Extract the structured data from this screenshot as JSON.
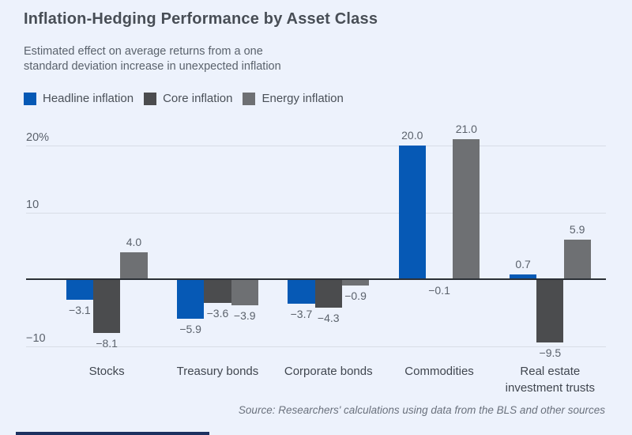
{
  "header": {
    "title": "Inflation-Hedging Performance by Asset Class",
    "subtitle_line1": "Estimated effect on average returns from a one",
    "subtitle_line2": "standard deviation increase in unexpected inflation"
  },
  "legend": {
    "items": [
      {
        "label": "Headline inflation",
        "color": "#0659b5"
      },
      {
        "label": "Core inflation",
        "color": "#4b4c4e"
      },
      {
        "label": "Energy inflation",
        "color": "#6e7073"
      }
    ]
  },
  "chart_data": {
    "type": "bar",
    "title": "Inflation-Hedging Performance by Asset Class",
    "categories": [
      "Stocks",
      "Treasury bonds",
      "Corporate bonds",
      "Commodities",
      "Real estate investment trusts"
    ],
    "series": [
      {
        "name": "Headline inflation",
        "color": "#0659b5",
        "values": [
          -3.1,
          -5.9,
          -3.7,
          20.0,
          0.7
        ]
      },
      {
        "name": "Core inflation",
        "color": "#4b4c4e",
        "values": [
          -8.1,
          -3.6,
          -4.3,
          -0.1,
          -9.5
        ]
      },
      {
        "name": "Energy inflation",
        "color": "#6e7073",
        "values": [
          4.0,
          -3.9,
          -0.9,
          21.0,
          5.9
        ]
      }
    ],
    "yticks": [
      {
        "value": 20,
        "label": "20%"
      },
      {
        "value": 10,
        "label": "10"
      },
      {
        "value": -10,
        "label": "−10"
      }
    ],
    "ylim": [
      -12,
      24
    ],
    "grid": "horizontal",
    "legend_position": "top-left",
    "xlabel": "",
    "ylabel": ""
  },
  "source": {
    "text": "Source: Researchers' calculations using data from the BLS and other sources"
  },
  "colors": {
    "background": "#edf2fc",
    "gridline": "#d8dde6",
    "zero_line": "#2b3036",
    "value_label": "#5b626c",
    "footer_accent": "#1d3160"
  }
}
